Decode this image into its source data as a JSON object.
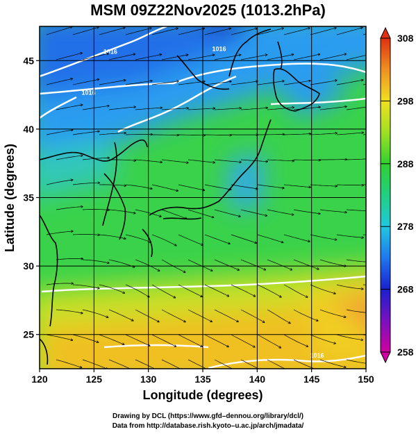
{
  "title": "MSM 09Z22Nov2025 (1013.2hPa)",
  "map": {
    "xlabel": "Longitude (degrees)",
    "ylabel": "Latitude  (degrees)",
    "xlim": [
      120,
      150
    ],
    "ylim": [
      22.5,
      47.5
    ],
    "x_ticks": [
      120,
      125,
      130,
      135,
      140,
      145,
      150
    ],
    "y_ticks": [
      25,
      30,
      35,
      40,
      45
    ],
    "grid": true,
    "variable": "potential temperature",
    "overlay": "wind streamlines",
    "contour_labels": [
      {
        "text": "1016",
        "lon": 126.5,
        "lat": 45.5
      },
      {
        "text": "1016",
        "lon": 136.5,
        "lat": 45.7
      },
      {
        "text": "1016",
        "lon": 124.5,
        "lat": 42.5
      },
      {
        "text": "1016",
        "lon": 145.5,
        "lat": 23.3
      }
    ]
  },
  "colorbar": {
    "min": 258,
    "max": 308,
    "labels": [
      258,
      268,
      278,
      288,
      298,
      308
    ]
  },
  "credits": {
    "line1": "Drawing by DCL (https://www.gfd–dennou.org/library/dcl/)",
    "line2": "Data from http://database.rish.kyoto–u.ac.jp/arch/jmadata/"
  }
}
